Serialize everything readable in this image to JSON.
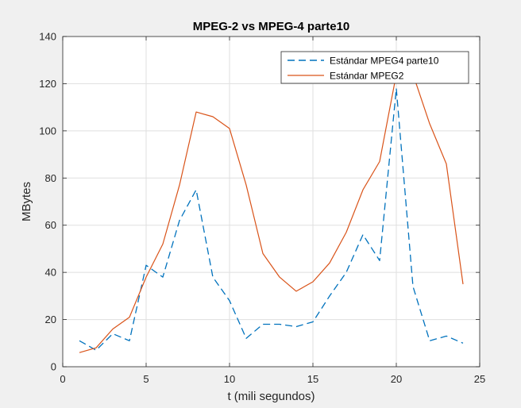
{
  "chart_data": {
    "type": "line",
    "title": "MPEG-2 vs MPEG-4 parte10",
    "xlabel": "t (mili segundos)",
    "ylabel": "MBytes",
    "xlim": [
      0,
      25
    ],
    "ylim": [
      0,
      140
    ],
    "x_ticks": [
      0,
      5,
      10,
      15,
      20,
      25
    ],
    "y_ticks": [
      0,
      20,
      40,
      60,
      80,
      100,
      120,
      140
    ],
    "grid": true,
    "legend_position": "top-right",
    "x": [
      1,
      2,
      3,
      4,
      5,
      6,
      7,
      8,
      9,
      10,
      11,
      12,
      13,
      14,
      15,
      16,
      17,
      18,
      19,
      20,
      21,
      22,
      23,
      24
    ],
    "series": [
      {
        "name": "Estándar MPEG4 parte10",
        "style": "dashed",
        "color": "#0072bd",
        "values": [
          11,
          7,
          14,
          11,
          43,
          38,
          62,
          75,
          38,
          28,
          12,
          18,
          18,
          17,
          19,
          30,
          40,
          56,
          45,
          118,
          34,
          11,
          13,
          10
        ]
      },
      {
        "name": "Estándar MPEG2",
        "style": "solid",
        "color": "#d95319",
        "values": [
          6,
          8,
          16,
          21,
          38,
          52,
          77,
          108,
          106,
          101,
          77,
          48,
          38,
          32,
          36,
          44,
          57,
          75,
          87,
          124,
          124,
          103,
          86,
          35
        ]
      }
    ]
  }
}
